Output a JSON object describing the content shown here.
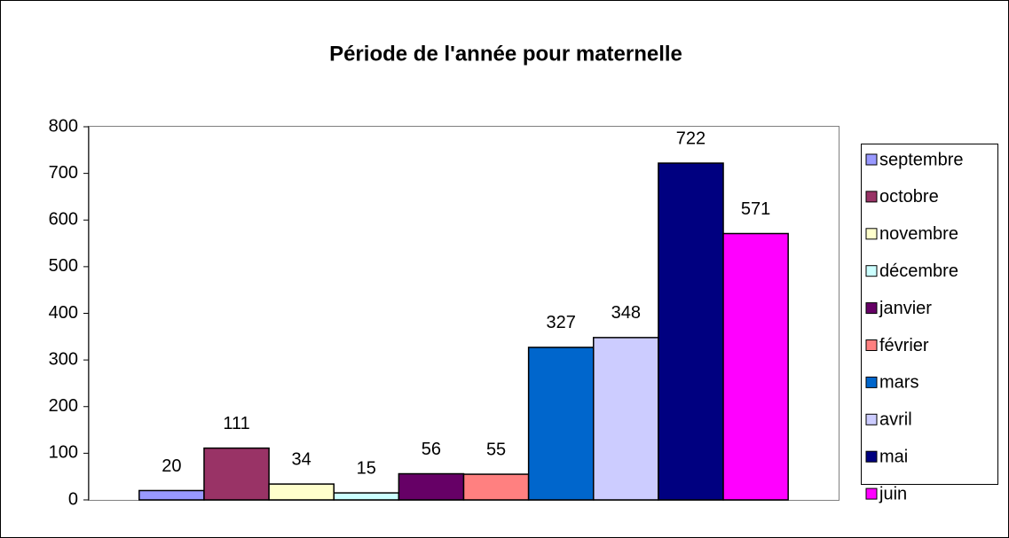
{
  "chart_data": {
    "type": "bar",
    "title": "Période de l'année pour maternelle",
    "categories": [
      null
    ],
    "series": [
      {
        "name": "septembre",
        "color": "#9999ff",
        "values": [
          20
        ]
      },
      {
        "name": "octobre",
        "color": "#993366",
        "values": [
          111
        ]
      },
      {
        "name": "novembre",
        "color": "#ffffcc",
        "values": [
          34
        ]
      },
      {
        "name": "décembre",
        "color": "#ccffff",
        "values": [
          15
        ]
      },
      {
        "name": "janvier",
        "color": "#660066",
        "values": [
          56
        ]
      },
      {
        "name": "février",
        "color": "#ff8080",
        "values": [
          55
        ]
      },
      {
        "name": "mars",
        "color": "#0066cc",
        "values": [
          327
        ]
      },
      {
        "name": "avril",
        "color": "#ccccff",
        "values": [
          348
        ]
      },
      {
        "name": "mai",
        "color": "#000080",
        "values": [
          722
        ]
      },
      {
        "name": "juin",
        "color": "#ff00ff",
        "values": [
          571
        ]
      }
    ],
    "ylim": [
      0,
      800
    ],
    "yticks": [
      0,
      100,
      200,
      300,
      400,
      500,
      600,
      700,
      800
    ],
    "grid": false,
    "legend": "right",
    "data_labels": true
  }
}
